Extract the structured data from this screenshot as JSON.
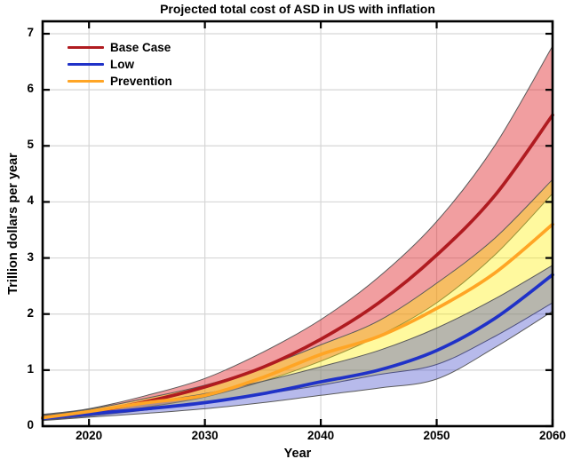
{
  "chart_data": {
    "type": "line",
    "title": "Projected total cost of ASD in US with inflation",
    "xlabel": "Year",
    "ylabel": "Trillion dollars per year",
    "x_range": [
      2016,
      2060
    ],
    "y_range": [
      0,
      7.22
    ],
    "x_ticks": [
      "2020",
      "2030",
      "2040",
      "2050",
      "2060"
    ],
    "x_tick_values": [
      2020,
      2030,
      2040,
      2050,
      2060
    ],
    "y_ticks": [
      "0",
      "1",
      "2",
      "3",
      "4",
      "5",
      "6",
      "7"
    ],
    "y_tick_values": [
      0,
      1,
      2,
      3,
      4,
      5,
      6,
      7
    ],
    "grid": true,
    "grid_color": "#d6d6d6",
    "axis_color": "#000000",
    "band_edge_color": "#5a5a5a",
    "legend_position": "upper-left",
    "years": [
      2016,
      2020,
      2025,
      2030,
      2035,
      2040,
      2045,
      2050,
      2055,
      2060
    ],
    "series": [
      {
        "name": "Base Case",
        "line_color": "#b01b20",
        "band_fill": "rgba(225,40,45,0.45)",
        "values": [
          0.15,
          0.25,
          0.44,
          0.7,
          1.05,
          1.55,
          2.2,
          3.05,
          4.11,
          5.55
        ],
        "upper": [
          0.21,
          0.31,
          0.55,
          0.85,
          1.32,
          1.9,
          2.66,
          3.65,
          5.0,
          6.78
        ],
        "lower": [
          0.11,
          0.19,
          0.34,
          0.52,
          0.8,
          1.16,
          1.61,
          2.2,
          3.05,
          4.15
        ]
      },
      {
        "name": "Prevention",
        "line_color": "#ffa525",
        "band_fill": "rgba(255,238,0,0.38)",
        "values": [
          0.15,
          0.26,
          0.42,
          0.55,
          0.87,
          1.28,
          1.6,
          2.1,
          2.73,
          3.6
        ],
        "upper": [
          0.2,
          0.3,
          0.5,
          0.73,
          1.05,
          1.45,
          1.88,
          2.55,
          3.35,
          4.4
        ],
        "lower": [
          0.11,
          0.18,
          0.29,
          0.42,
          0.57,
          0.73,
          0.92,
          1.1,
          1.6,
          2.2
        ]
      },
      {
        "name": "Low",
        "line_color": "#2032c8",
        "band_fill": "rgba(55,65,200,0.36)",
        "values": [
          0.14,
          0.22,
          0.31,
          0.42,
          0.58,
          0.79,
          1.0,
          1.35,
          1.92,
          2.7
        ],
        "upper": [
          0.19,
          0.28,
          0.42,
          0.58,
          0.8,
          1.06,
          1.35,
          1.75,
          2.27,
          2.87
        ],
        "lower": [
          0.1,
          0.16,
          0.23,
          0.31,
          0.42,
          0.55,
          0.68,
          0.84,
          1.4,
          2.05
        ]
      }
    ],
    "legend": [
      {
        "label": "Base Case",
        "color": "#b01b20"
      },
      {
        "label": "Low",
        "color": "#2032c8"
      },
      {
        "label": "Prevention",
        "color": "#ffa525"
      }
    ]
  }
}
